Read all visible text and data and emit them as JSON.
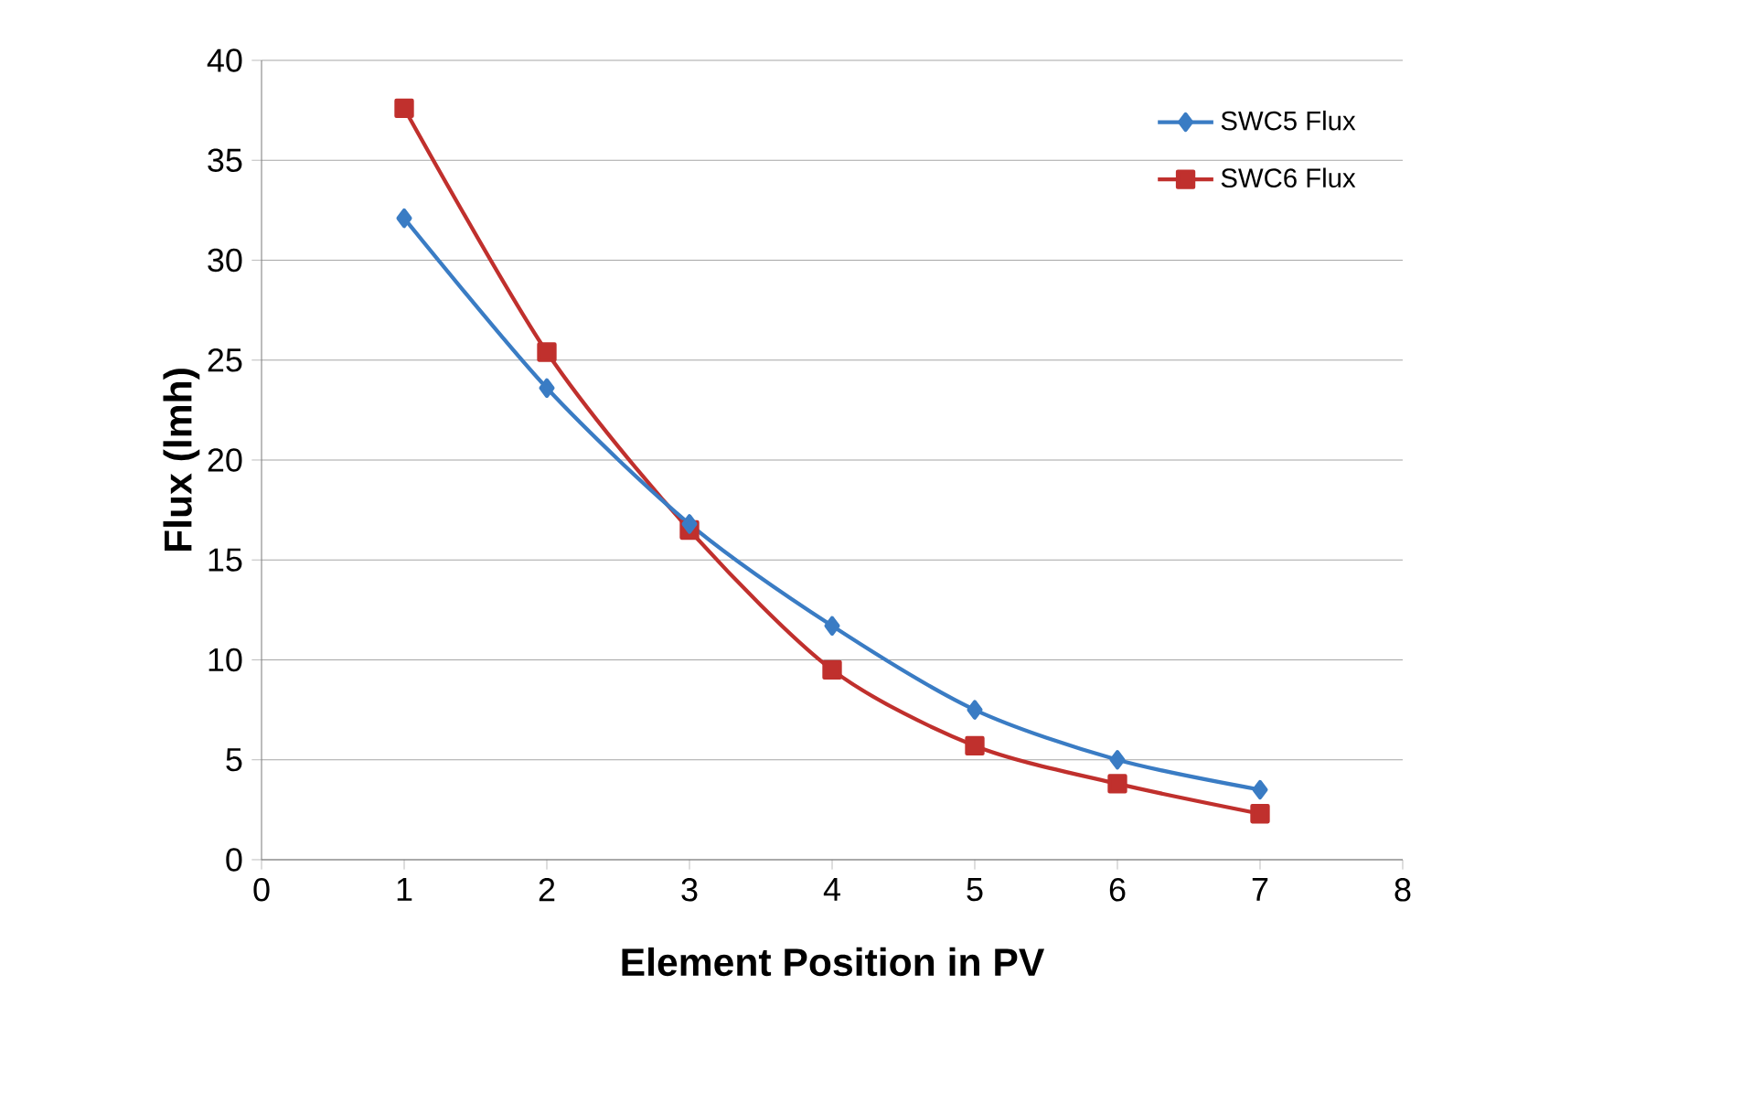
{
  "chart_data": {
    "type": "line",
    "xlabel": "Element Position in PV",
    "ylabel": "Flux (lmh)",
    "x": [
      1,
      2,
      3,
      4,
      5,
      6,
      7
    ],
    "series": [
      {
        "name": "SWC5 Flux",
        "color": "#3a7cc4",
        "marker": "diamond",
        "values": [
          32.1,
          23.6,
          16.8,
          11.7,
          7.5,
          5.0,
          3.5
        ]
      },
      {
        "name": "SWC6 Flux",
        "color": "#c0302d",
        "marker": "square",
        "values": [
          37.6,
          25.4,
          16.5,
          9.5,
          5.7,
          3.8,
          2.3
        ]
      }
    ],
    "xlim": [
      0,
      8
    ],
    "xticks": [
      0,
      1,
      2,
      3,
      4,
      5,
      6,
      7,
      8
    ],
    "ylim": [
      0,
      40
    ],
    "yticks": [
      0,
      5,
      10,
      15,
      20,
      25,
      30,
      35,
      40
    ],
    "grid": "y",
    "legend": "top right",
    "line_style": "solid"
  }
}
